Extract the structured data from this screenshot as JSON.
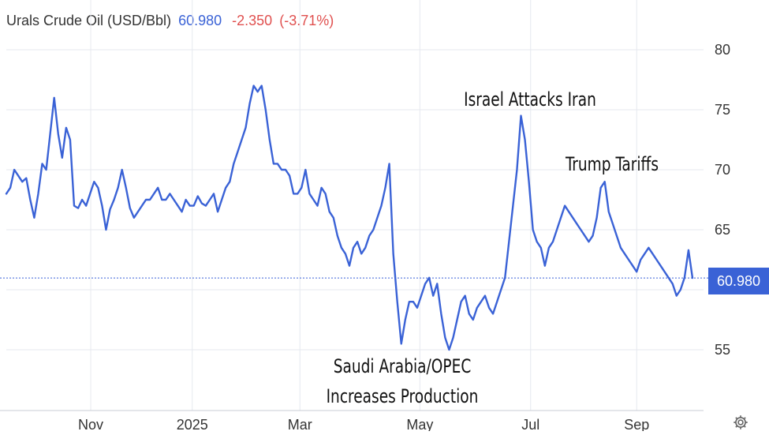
{
  "header": {
    "title": "Urals Crude Oil (USD/Bbl)",
    "price": "60.980",
    "change": "-2.350",
    "change_pct": "(-3.71%)"
  },
  "price_tag": "60.980",
  "annotations": {
    "israel": "Israel Attacks Iran",
    "trump": "Trump Tariffs",
    "saudi_line1": "Saudi Arabia/OPEC",
    "saudi_line2": "Increases Production"
  },
  "colors": {
    "line": "#3a62d6",
    "grid": "#e6e9ef",
    "positive": "#3a62d6",
    "negative": "#e0504f"
  },
  "icons": {
    "settings": "gear-icon"
  },
  "chart_data": {
    "type": "line",
    "title": "Urals Crude Oil (USD/Bbl)",
    "xlabel": "",
    "ylabel": "",
    "ylim": [
      50,
      82
    ],
    "y_ticks": [
      55,
      60,
      65,
      70,
      75,
      80
    ],
    "y_tick_labels": [
      "55",
      "60",
      "65",
      "70",
      "75",
      "80"
    ],
    "x_tick_labels": [
      "Nov",
      "2025",
      "Mar",
      "May",
      "Jul",
      "Sep"
    ],
    "x_tick_pos": [
      0.118,
      0.25,
      0.39,
      0.546,
      0.69,
      0.828
    ],
    "last_value": 60.98,
    "values": [
      68.0,
      68.5,
      70.0,
      69.5,
      69.0,
      69.3,
      67.5,
      66.0,
      68.0,
      70.5,
      70.0,
      73.0,
      76.0,
      73.0,
      71.0,
      73.5,
      72.5,
      67.0,
      66.8,
      67.5,
      67.0,
      68.0,
      69.0,
      68.5,
      67.0,
      65.0,
      66.7,
      67.5,
      68.5,
      70.0,
      68.5,
      66.8,
      66.0,
      66.5,
      67.0,
      67.5,
      67.5,
      68.0,
      68.5,
      67.5,
      67.5,
      68.0,
      67.5,
      67.0,
      66.5,
      67.5,
      67.0,
      67.0,
      67.8,
      67.2,
      67.0,
      67.5,
      68.0,
      66.5,
      67.5,
      68.5,
      69.0,
      70.5,
      71.5,
      72.5,
      73.5,
      75.5,
      77.0,
      76.5,
      77.0,
      75.0,
      72.5,
      70.5,
      70.5,
      70.0,
      70.0,
      69.5,
      68.0,
      68.0,
      68.5,
      70.0,
      68.0,
      67.5,
      67.0,
      68.5,
      68.0,
      66.5,
      66.0,
      64.5,
      63.5,
      63.0,
      62.0,
      63.5,
      64.0,
      63.0,
      63.5,
      64.5,
      65.0,
      66.0,
      67.0,
      68.5,
      70.5,
      63.0,
      59.0,
      55.5,
      57.5,
      59.0,
      59.0,
      58.5,
      59.5,
      60.5,
      61.0,
      59.5,
      60.5,
      58.0,
      56.0,
      55.0,
      56.0,
      57.5,
      59.0,
      59.5,
      58.0,
      57.5,
      58.5,
      59.0,
      59.5,
      58.5,
      58.0,
      59.0,
      60.0,
      61.0,
      64.0,
      67.0,
      70.0,
      74.5,
      72.5,
      69.0,
      65.0,
      64.0,
      63.5,
      62.0,
      63.5,
      64.0,
      65.0,
      66.0,
      67.0,
      66.5,
      66.0,
      65.5,
      65.0,
      64.5,
      64.0,
      64.5,
      66.0,
      68.5,
      69.0,
      66.5,
      65.5,
      64.5,
      63.5,
      63.0,
      62.5,
      62.0,
      61.5,
      62.5,
      63.0,
      63.5,
      63.0,
      62.5,
      62.0,
      61.5,
      61.0,
      60.5,
      59.5,
      60.0,
      61.0,
      63.3,
      60.98
    ]
  }
}
